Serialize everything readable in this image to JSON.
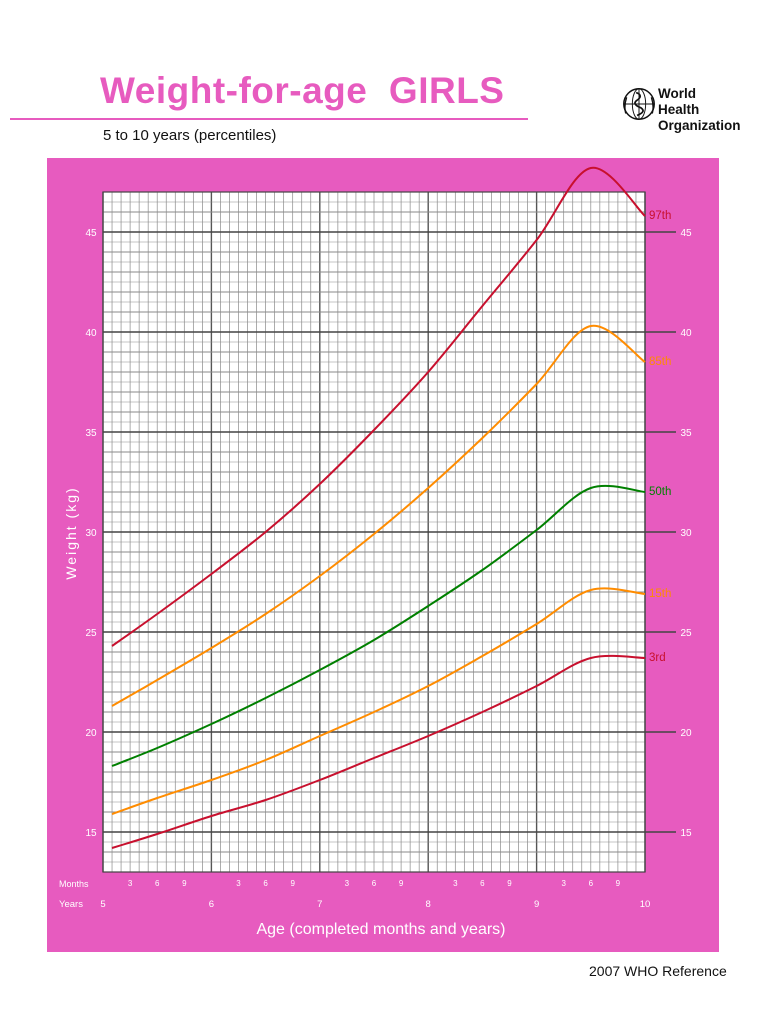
{
  "header": {
    "title": "Weight-for-age  GIRLS",
    "subtitle": "5 to 10 years (percentiles)",
    "org_line1": "World Health",
    "org_line2": "Organization",
    "footer": "2007 WHO Reference"
  },
  "colors": {
    "brand_pink": "#e75bbf",
    "p97": "#c8102e",
    "p85": "#ff8c00",
    "p50": "#008000",
    "p15": "#ff8c00",
    "p3": "#c8102e"
  },
  "chart_data": {
    "type": "line",
    "title": "Weight-for-age  GIRLS",
    "subtitle": "5 to 10 years (percentiles)",
    "xlabel": "Age (completed months and years)",
    "ylabel": "Weight (kg)",
    "x_unit": "months",
    "xlim": [
      60,
      120
    ],
    "ylim": [
      13,
      47
    ],
    "y_ticks": [
      15,
      20,
      25,
      30,
      35,
      40,
      45
    ],
    "row_labels": {
      "months": "Months",
      "years": "Years"
    },
    "month_tick_labels": [
      "3",
      "6",
      "9"
    ],
    "year_tick_labels": [
      "5",
      "6",
      "7",
      "8",
      "9",
      "10"
    ],
    "grid": true,
    "x": [
      61,
      66,
      72,
      78,
      84,
      90,
      96,
      102,
      108,
      114,
      120
    ],
    "series": [
      {
        "name": "97th",
        "values": [
          24.3,
          25.9,
          27.9,
          30.0,
          32.4,
          35.1,
          38.0,
          41.3,
          44.6,
          48.2,
          45.8
        ]
      },
      {
        "name": "85th",
        "values": [
          21.3,
          22.6,
          24.2,
          25.9,
          27.8,
          29.9,
          32.2,
          34.7,
          37.4,
          40.3,
          38.5
        ]
      },
      {
        "name": "50th",
        "values": [
          18.3,
          19.2,
          20.4,
          21.7,
          23.1,
          24.6,
          26.3,
          28.1,
          30.1,
          32.2,
          32.0
        ]
      },
      {
        "name": "15th",
        "values": [
          15.9,
          16.7,
          17.6,
          18.6,
          19.8,
          21.0,
          22.3,
          23.8,
          25.4,
          27.1,
          26.9
        ]
      },
      {
        "name": "3rd",
        "values": [
          14.2,
          14.9,
          15.8,
          16.6,
          17.6,
          18.7,
          19.8,
          21.0,
          22.3,
          23.7,
          23.7
        ]
      }
    ]
  }
}
